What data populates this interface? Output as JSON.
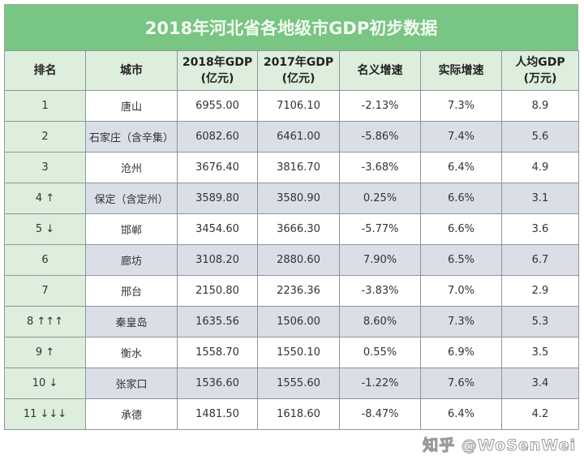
{
  "title": "2018年河北省各地级市GDP初步数据",
  "headers": [
    [
      "排名",
      ""
    ],
    [
      "城市",
      ""
    ],
    [
      "2018年GDP",
      "(亿元)"
    ],
    [
      "2017年GDP",
      "(亿元)"
    ],
    [
      "名义增速",
      ""
    ],
    [
      "实际增速",
      ""
    ],
    [
      "人均GDP",
      "(万元)"
    ]
  ],
  "rows": [
    [
      "1",
      "唐山",
      "6955.00",
      "7106.10",
      "-2.13%",
      "7.3%",
      "8.9"
    ],
    [
      "2",
      "石家庄（含辛集）",
      "6082.60",
      "6461.00",
      "-5.86%",
      "7.4%",
      "5.6"
    ],
    [
      "3",
      "沧州",
      "3676.40",
      "3816.70",
      "-3.68%",
      "6.4%",
      "4.9"
    ],
    [
      "4 ↑",
      "保定（含定州）",
      "3589.80",
      "3580.90",
      "0.25%",
      "6.6%",
      "3.1"
    ],
    [
      "5 ↓",
      "邯郸",
      "3454.60",
      "3666.30",
      "-5.77%",
      "6.6%",
      "3.6"
    ],
    [
      "6",
      "廊坊",
      "3108.20",
      "2880.60",
      "7.90%",
      "6.5%",
      "6.7"
    ],
    [
      "7",
      "邢台",
      "2150.80",
      "2236.36",
      "-3.83%",
      "7.0%",
      "2.9"
    ],
    [
      "8 ↑↑↑",
      "秦皇岛",
      "1635.56",
      "1506.00",
      "8.60%",
      "7.3%",
      "5.3"
    ],
    [
      "9 ↑",
      "衡水",
      "1558.70",
      "1550.10",
      "0.55%",
      "6.9%",
      "3.5"
    ],
    [
      "10 ↓",
      "张家口",
      "1536.60",
      "1555.60",
      "-1.22%",
      "7.6%",
      "3.4"
    ],
    [
      "11 ↓↓↓",
      "承德",
      "1481.50",
      "1618.60",
      "-8.47%",
      "6.4%",
      "4.2"
    ]
  ],
  "watermark": "知乎 @WoSenWei",
  "colors": {
    "title_bg": "#79c583",
    "header_bg": "#ddeedd",
    "alt_row": "#d9dee7"
  }
}
